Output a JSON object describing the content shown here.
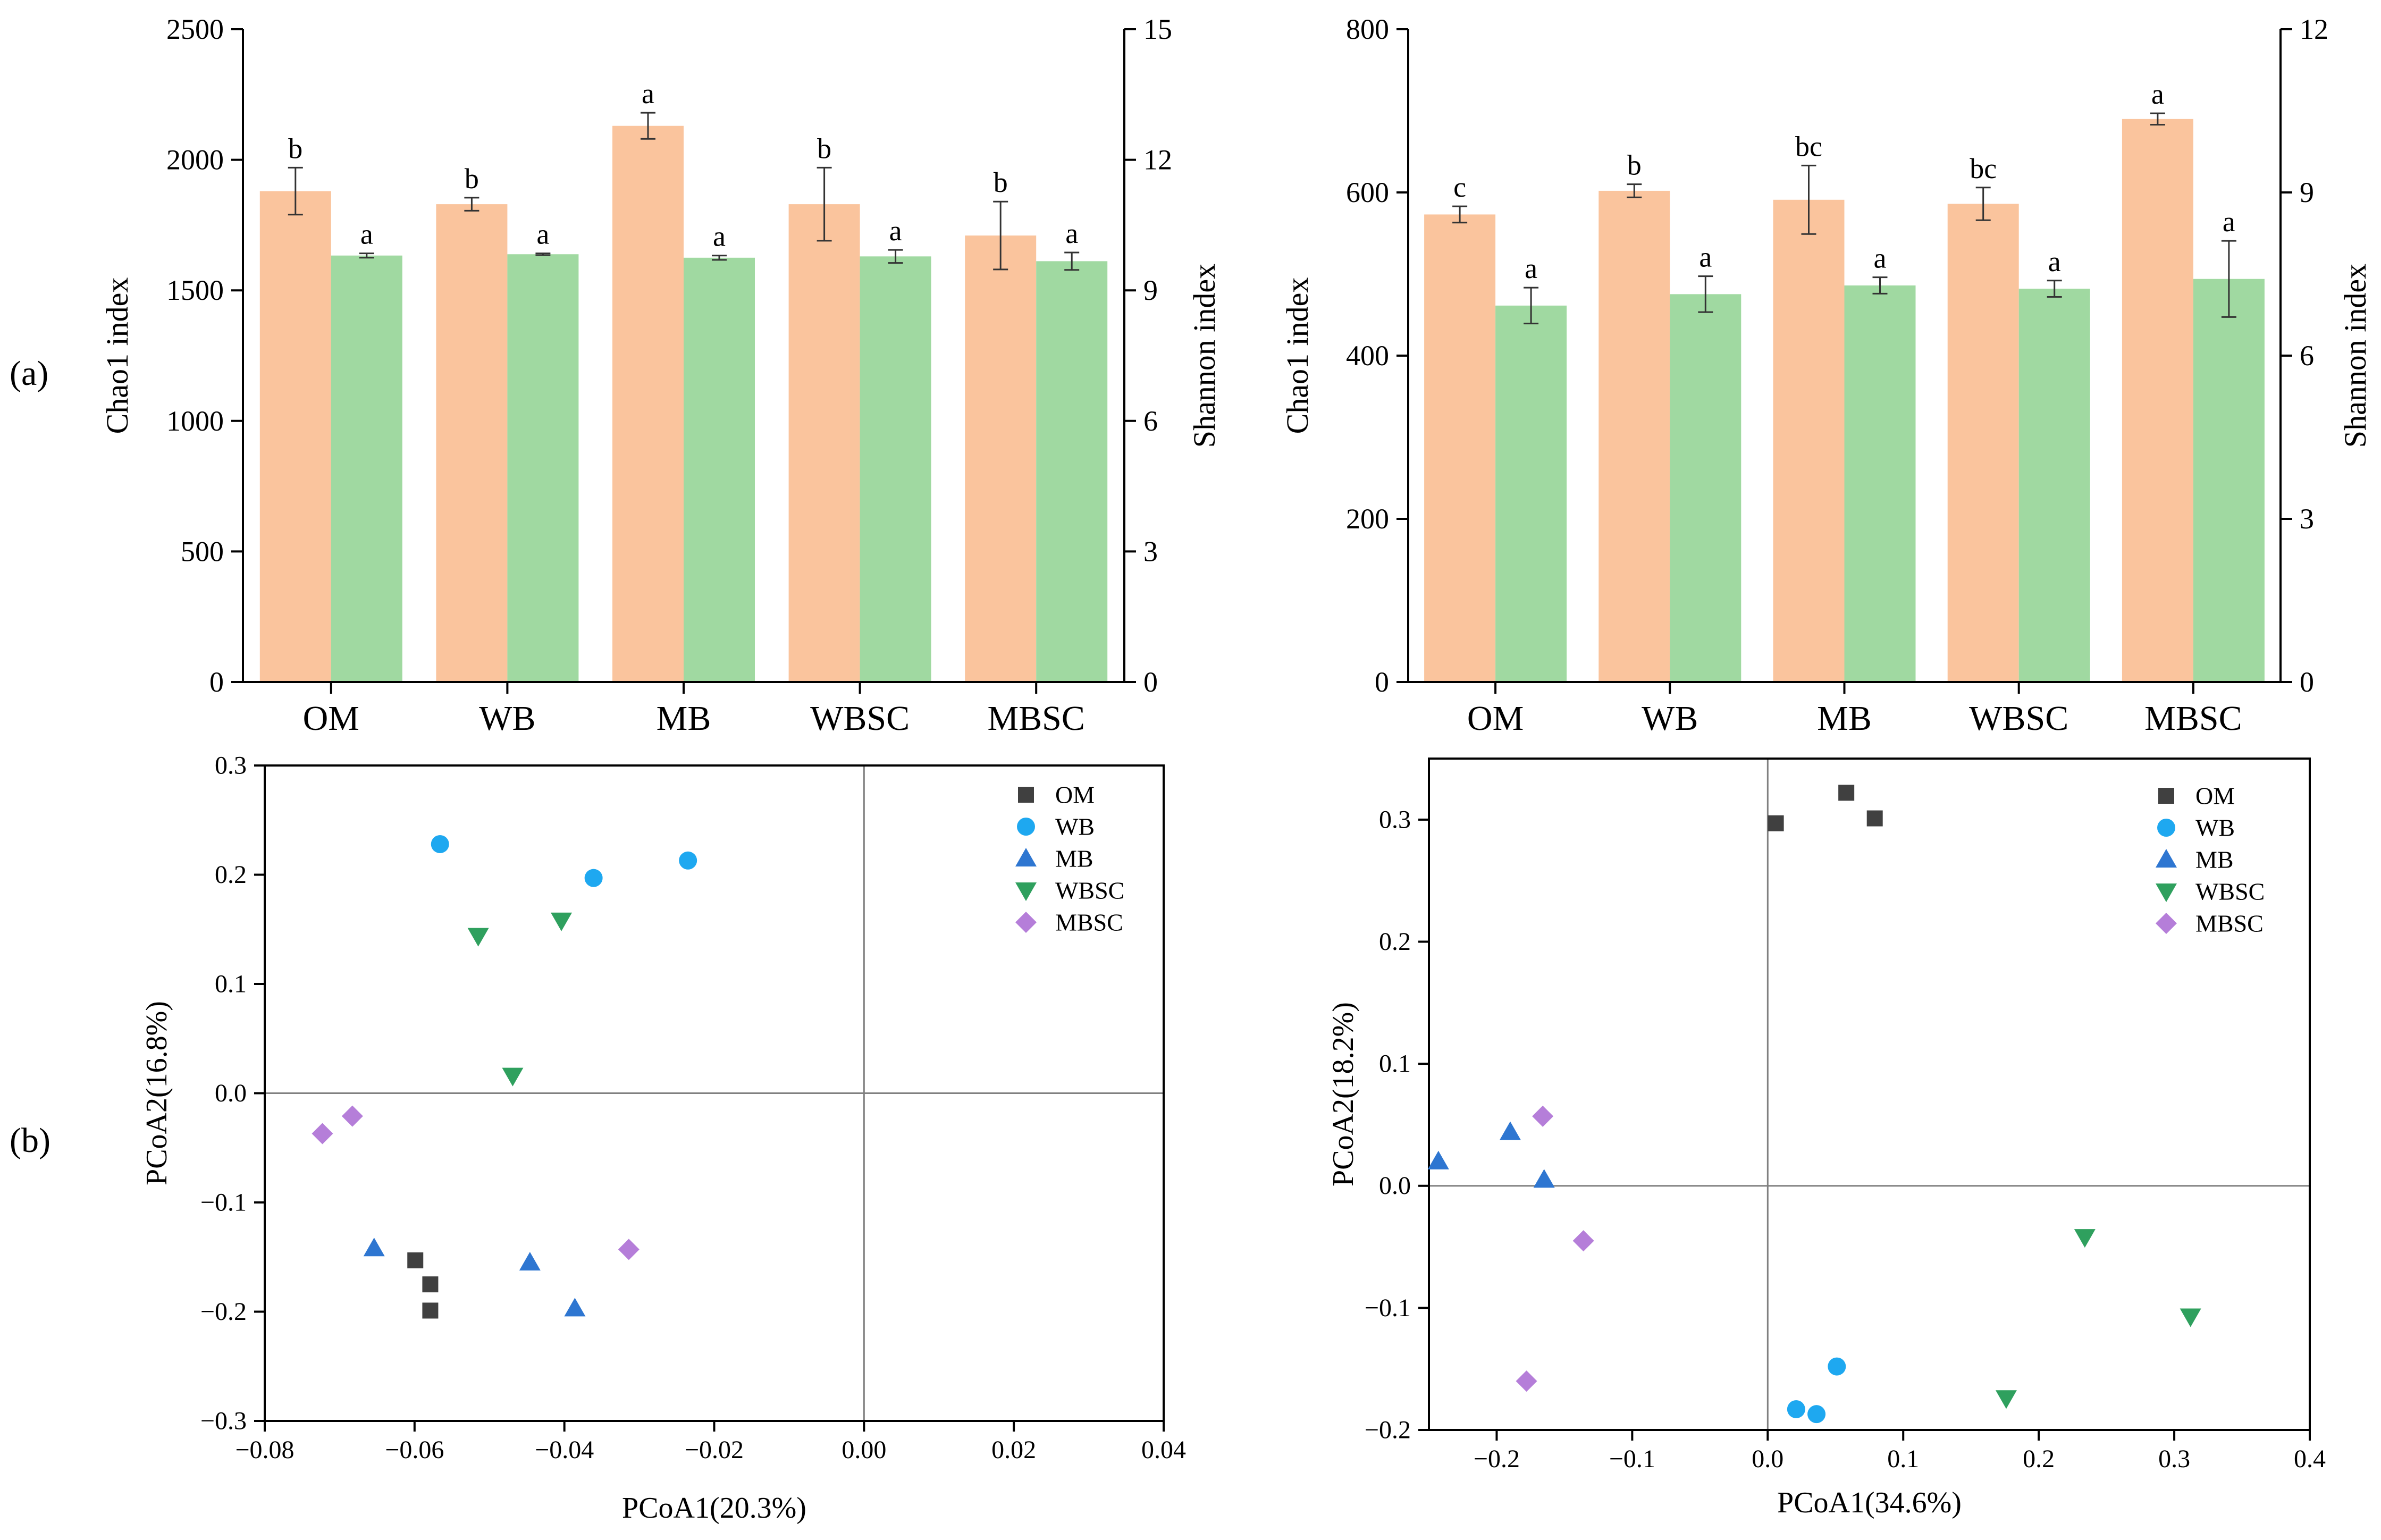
{
  "panel_labels": {
    "a": "(a)",
    "b": "(b)"
  },
  "colors": {
    "chao1": "#FAC49D",
    "shannon": "#A0D9A1",
    "OM": "#404040",
    "WB": "#1EA8F0",
    "MB": "#2E76D1",
    "WBSC": "#2FA05E",
    "MBSC": "#B57ED9",
    "axis": "#000000",
    "ref": "#808080"
  },
  "chart_data": [
    {
      "id": "bar-left",
      "type": "bar",
      "categories": [
        "OM",
        "WB",
        "MB",
        "WBSC",
        "MBSC"
      ],
      "ylabel": "Chao1 index",
      "ylabel_right": "Shannon index",
      "ylim": [
        0,
        2500
      ],
      "ylim_right": [
        0,
        15
      ],
      "yticks": [
        0,
        500,
        1000,
        1500,
        2000,
        2500
      ],
      "yticks_right": [
        0,
        3,
        6,
        9,
        12,
        15
      ],
      "series": [
        {
          "name": "Chao1",
          "axis": "left",
          "color_key": "chao1",
          "values": [
            1880,
            1830,
            2130,
            1830,
            1710
          ],
          "errors": [
            90,
            25,
            50,
            140,
            130
          ],
          "letters": [
            "b",
            "b",
            "a",
            "b",
            "b"
          ]
        },
        {
          "name": "Shannon",
          "axis": "right",
          "color_key": "shannon",
          "values": [
            9.8,
            9.83,
            9.75,
            9.78,
            9.67
          ],
          "errors": [
            0.05,
            0.02,
            0.05,
            0.15,
            0.2
          ],
          "letters": [
            "a",
            "a",
            "a",
            "a",
            "a"
          ]
        }
      ]
    },
    {
      "id": "bar-right",
      "type": "bar",
      "categories": [
        "OM",
        "WB",
        "MB",
        "WBSC",
        "MBSC"
      ],
      "ylabel": "Chao1 index",
      "ylabel_right": "Shannon index",
      "ylim": [
        0,
        800
      ],
      "ylim_right": [
        0,
        12
      ],
      "yticks": [
        0,
        200,
        400,
        600,
        800
      ],
      "yticks_right": [
        0,
        3,
        6,
        9,
        12
      ],
      "series": [
        {
          "name": "Chao1",
          "axis": "left",
          "color_key": "chao1",
          "values": [
            573,
            602,
            591,
            586,
            690
          ],
          "errors": [
            10,
            8,
            42,
            20,
            7
          ],
          "letters": [
            "c",
            "b",
            "bc",
            "bc",
            "a"
          ]
        },
        {
          "name": "Shannon",
          "axis": "right",
          "color_key": "shannon",
          "values": [
            6.92,
            7.13,
            7.29,
            7.23,
            7.41
          ],
          "errors": [
            0.33,
            0.33,
            0.15,
            0.15,
            0.7
          ],
          "letters": [
            "a",
            "a",
            "a",
            "a",
            "a"
          ]
        }
      ]
    },
    {
      "id": "pcoa-left",
      "type": "scatter",
      "xlabel": "PCoA1(20.3%)",
      "ylabel": "PCoA2(16.8%)",
      "xlim": [
        -0.08,
        0.04
      ],
      "ylim": [
        -0.3,
        0.3
      ],
      "xticks": [
        -0.08,
        -0.06,
        -0.04,
        -0.02,
        0.0,
        0.02,
        0.04
      ],
      "xtick_labels": [
        "−0.08",
        "−0.06",
        "−0.04",
        "−0.02",
        "0.00",
        "0.02",
        "0.04"
      ],
      "yticks": [
        -0.3,
        -0.2,
        -0.1,
        0.0,
        0.1,
        0.2,
        0.3
      ],
      "ytick_labels": [
        "−0.3",
        "−0.2",
        "−0.1",
        "0.0",
        "0.1",
        "0.2",
        "0.3"
      ],
      "legend_position": "top-right",
      "series": [
        {
          "name": "OM",
          "marker": "square",
          "color_key": "OM",
          "points": [
            [
              -0.0599,
              -0.153
            ],
            [
              -0.0579,
              -0.175
            ],
            [
              -0.0579,
              -0.199
            ]
          ]
        },
        {
          "name": "WB",
          "marker": "circle",
          "color_key": "WB",
          "points": [
            [
              -0.0566,
              0.228
            ],
            [
              -0.0361,
              0.197
            ],
            [
              -0.0235,
              0.213
            ]
          ]
        },
        {
          "name": "MB",
          "marker": "triangle-up",
          "color_key": "MB",
          "points": [
            [
              -0.0654,
              -0.142
            ],
            [
              -0.0446,
              -0.155
            ],
            [
              -0.0386,
              -0.197
            ]
          ]
        },
        {
          "name": "WBSC",
          "marker": "triangle-down",
          "color_key": "WBSC",
          "points": [
            [
              -0.0515,
              0.144
            ],
            [
              -0.0404,
              0.158
            ],
            [
              -0.0469,
              0.016
            ]
          ]
        },
        {
          "name": "MBSC",
          "marker": "diamond",
          "color_key": "MBSC",
          "points": [
            [
              -0.0723,
              -0.037
            ],
            [
              -0.0683,
              -0.021
            ],
            [
              -0.0314,
              -0.143
            ]
          ]
        }
      ]
    },
    {
      "id": "pcoa-right",
      "type": "scatter",
      "xlabel": "PCoA1(34.6%)",
      "ylabel": "PCoA2(18.2%)",
      "xlim": [
        -0.25,
        0.4
      ],
      "ylim": [
        -0.2,
        0.35
      ],
      "xticks": [
        -0.2,
        -0.1,
        0.0,
        0.1,
        0.2,
        0.3,
        0.4
      ],
      "xtick_labels": [
        "−0.2",
        "−0.1",
        "0.0",
        "0.1",
        "0.2",
        "0.3",
        "0.4"
      ],
      "yticks": [
        -0.2,
        -0.1,
        0.0,
        0.1,
        0.2,
        0.3
      ],
      "ytick_labels": [
        "−0.2",
        "−0.1",
        "0.0",
        "0.1",
        "0.2",
        "0.3"
      ],
      "legend_position": "top-right",
      "series": [
        {
          "name": "OM",
          "marker": "square",
          "color_key": "OM",
          "points": [
            [
              0.006,
              0.297
            ],
            [
              0.058,
              0.322
            ],
            [
              0.079,
              0.301
            ]
          ]
        },
        {
          "name": "WB",
          "marker": "circle",
          "color_key": "WB",
          "points": [
            [
              0.021,
              -0.183
            ],
            [
              0.036,
              -0.187
            ],
            [
              0.051,
              -0.148
            ]
          ]
        },
        {
          "name": "MB",
          "marker": "triangle-up",
          "color_key": "MB",
          "points": [
            [
              -0.243,
              0.02
            ],
            [
              -0.19,
              0.044
            ],
            [
              -0.165,
              0.005
            ]
          ]
        },
        {
          "name": "WBSC",
          "marker": "triangle-down",
          "color_key": "WBSC",
          "points": [
            [
              0.176,
              -0.174
            ],
            [
              0.234,
              -0.042
            ],
            [
              0.312,
              -0.107
            ]
          ]
        },
        {
          "name": "MBSC",
          "marker": "diamond",
          "color_key": "MBSC",
          "points": [
            [
              -0.166,
              0.057
            ],
            [
              -0.136,
              -0.045
            ],
            [
              -0.178,
              -0.16
            ]
          ]
        }
      ]
    }
  ]
}
